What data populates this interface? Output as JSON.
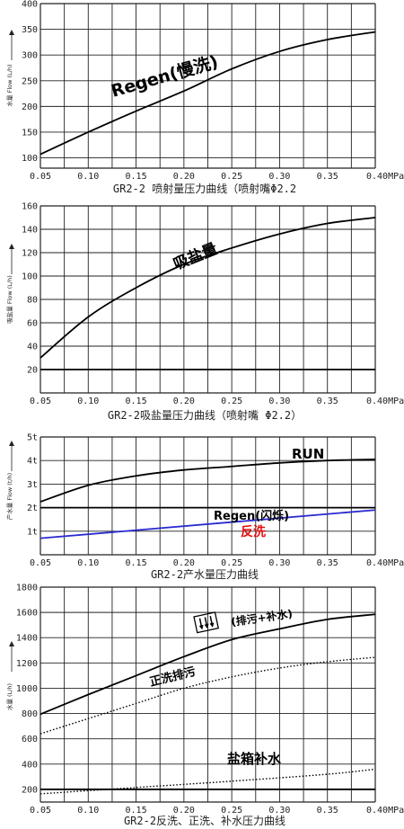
{
  "chart_data": [
    {
      "type": "line",
      "title": "GR2-2 喷射量压力曲线（喷射嘴Φ2.2",
      "ylabel": "水量 Flow (L/h)",
      "xlim": [
        0.05,
        0.4
      ],
      "ylim": [
        80,
        400
      ],
      "x_ticks": [
        "0.05",
        "0.10",
        "0.15",
        "0.20",
        "0.25",
        "0.30",
        "0.35",
        "0.40MPa"
      ],
      "y_ticks": [
        "100",
        "150",
        "200",
        "250",
        "300",
        "350",
        "400"
      ],
      "grid": true,
      "series": [
        {
          "name": "Regen(慢洗)",
          "x": [
            0.05,
            0.1,
            0.15,
            0.2,
            0.25,
            0.3,
            0.35,
            0.4
          ],
          "y": [
            107,
            150,
            191,
            230,
            273,
            307,
            330,
            345
          ],
          "color": "#000000",
          "style": "solid"
        }
      ]
    },
    {
      "type": "line",
      "title": "GR2-2吸盐量压力曲线（喷射嘴  Φ2.2）",
      "ylabel": "吸盐量 Flow (L/h)",
      "xlim": [
        0.05,
        0.4
      ],
      "ylim": [
        0,
        160
      ],
      "x_ticks": [
        "0.05",
        "0.10",
        "0.15",
        "0.20",
        "0.25",
        "0.30",
        "0.35",
        "0.40MPa"
      ],
      "y_ticks": [
        "20",
        "40",
        "60",
        "80",
        "100",
        "120",
        "140",
        "160"
      ],
      "grid": true,
      "series": [
        {
          "name": "吸盐量",
          "x": [
            0.05,
            0.1,
            0.15,
            0.2,
            0.25,
            0.3,
            0.35,
            0.4
          ],
          "y": [
            30,
            65,
            90,
            110,
            124,
            136,
            145,
            150
          ],
          "color": "#000000",
          "style": "solid"
        },
        {
          "name": "",
          "x": [
            0.05,
            0.4
          ],
          "y": [
            20,
            20
          ],
          "color": "#000000",
          "style": "solid"
        }
      ]
    },
    {
      "type": "line",
      "title": "GR2-2产水量压力曲线",
      "ylabel": "产水量 Flow (t/h)",
      "xlim": [
        0.05,
        0.4
      ],
      "ylim": [
        0,
        5
      ],
      "x_ticks": [
        "0.05",
        "0.10",
        "0.15",
        "0.20",
        "0.25",
        "0.30",
        "0.35",
        "0.40MPa"
      ],
      "y_ticks": [
        "1t",
        "2t",
        "3t",
        "4t",
        "5t"
      ],
      "grid": true,
      "series": [
        {
          "name": "RUN",
          "x": [
            0.05,
            0.1,
            0.15,
            0.2,
            0.25,
            0.3,
            0.35,
            0.4
          ],
          "y": [
            2.25,
            2.95,
            3.35,
            3.6,
            3.75,
            3.9,
            4.0,
            4.05
          ],
          "color": "#000000",
          "style": "solid"
        },
        {
          "name": "Regen(闪烁)",
          "x": [
            0.05,
            0.4
          ],
          "y": [
            2.0,
            2.0
          ],
          "color": "#000000",
          "style": "solid"
        },
        {
          "name": "反洗",
          "x": [
            0.05,
            0.4
          ],
          "y": [
            0.7,
            1.9
          ],
          "color": "#2a2ad0",
          "style": "solid"
        }
      ]
    },
    {
      "type": "line",
      "title": "GR2-2反洗、正洗、补水压力曲线",
      "ylabel": "水量 (L/h)",
      "xlim": [
        0.05,
        0.4
      ],
      "ylim": [
        100,
        1800
      ],
      "x_ticks": [
        "0.05",
        "0.10",
        "0.15",
        "0.20",
        "0.25",
        "0.30",
        "0.35",
        "0.40MPa"
      ],
      "y_ticks": [
        "200",
        "400",
        "600",
        "800",
        "1000",
        "1200",
        "1400",
        "1600",
        "1800"
      ],
      "grid": true,
      "series": [
        {
          "name": "(排污+补水)",
          "x": [
            0.05,
            0.1,
            0.15,
            0.2,
            0.25,
            0.3,
            0.35,
            0.4
          ],
          "y": [
            795,
            950,
            1100,
            1250,
            1385,
            1470,
            1545,
            1585
          ],
          "color": "#000000",
          "style": "solid"
        },
        {
          "name": "正洗排污",
          "x": [
            0.05,
            0.1,
            0.15,
            0.2,
            0.25,
            0.3,
            0.35,
            0.4
          ],
          "y": [
            640,
            760,
            880,
            1000,
            1090,
            1160,
            1210,
            1245
          ],
          "color": "#000000",
          "style": "dotted"
        },
        {
          "name": "盐箱补水",
          "x": [
            0.05,
            0.15,
            0.25,
            0.35,
            0.4
          ],
          "y": [
            165,
            215,
            265,
            320,
            360
          ],
          "color": "#000000",
          "style": "dotted"
        },
        {
          "name": "",
          "x": [
            0.05,
            0.4
          ],
          "y": [
            200,
            200
          ],
          "color": "#000000",
          "style": "solid"
        }
      ]
    }
  ]
}
